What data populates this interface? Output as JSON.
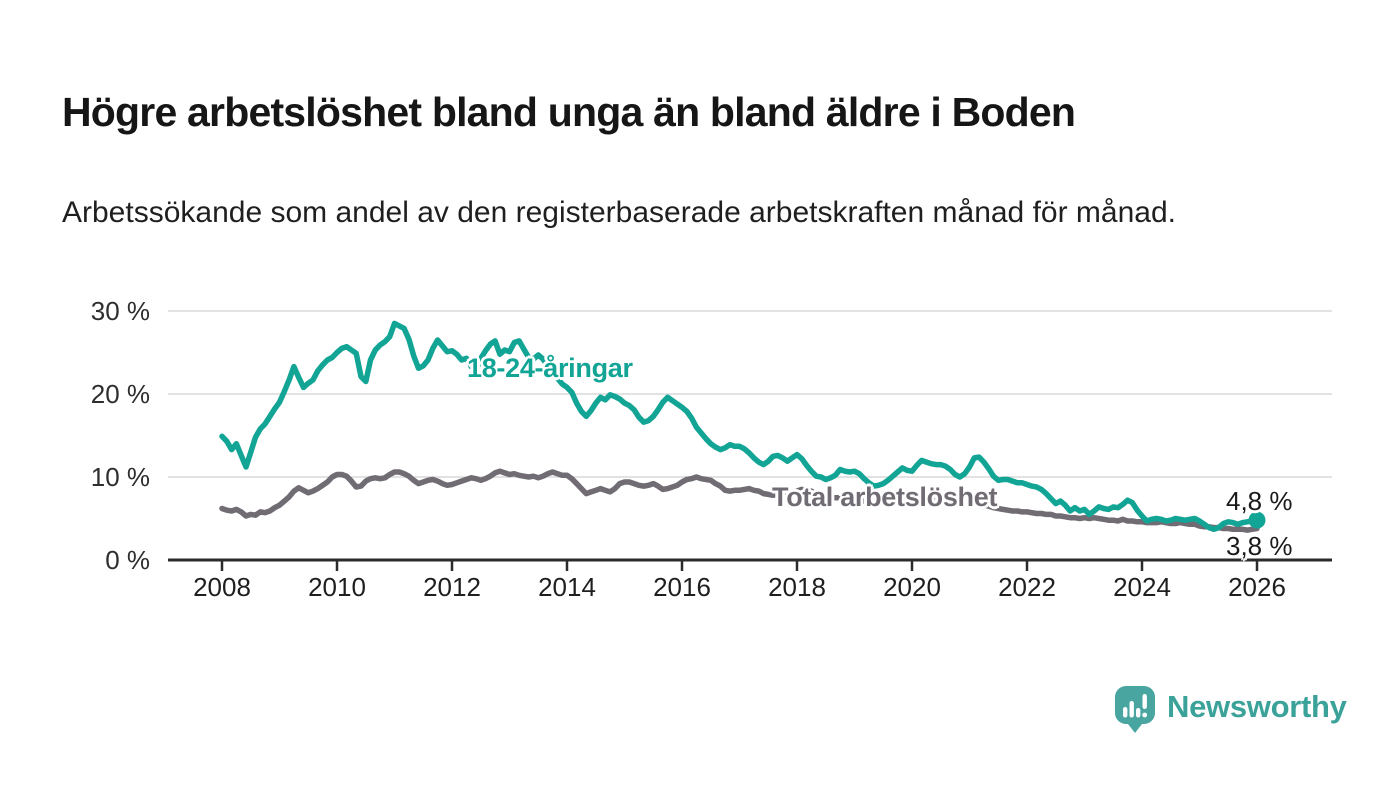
{
  "header": {
    "title": "Högre arbetslöshet bland unga än bland äldre i Boden",
    "subtitle": "Arbetssökande som andel av den registerbaserade arbetskraften månad för månad."
  },
  "colors": {
    "accent_teal": "#12a495",
    "line_gray": "#716c74",
    "grid": "#d8d8d8",
    "axis": "#2b2b2b",
    "tick_text": "#2e2e2e",
    "title_text": "#161616",
    "end_label_text": "#1a1a1a",
    "logo_bubble": "#48a59f",
    "logo_text": "#3ba29a"
  },
  "footer": {
    "brand": "Newsworthy",
    "logo_icon": "speech-bubble-bar-chart"
  },
  "chart_data": {
    "type": "line",
    "title": "Högre arbetslöshet bland unga än bland äldre i Boden",
    "ylabel": "",
    "xlabel": "",
    "grid": true,
    "legend_position": "inline-labels",
    "ylim": [
      0,
      31
    ],
    "x_axis": {
      "start_year": 2008,
      "points_per_year": 12,
      "tick_years": [
        2008,
        2010,
        2012,
        2014,
        2016,
        2018,
        2020,
        2022,
        2024,
        2026
      ]
    },
    "y_axis": {
      "ticks": [
        {
          "value": 0,
          "label": "0 %"
        },
        {
          "value": 10,
          "label": "10 %"
        },
        {
          "value": 20,
          "label": "20 %"
        },
        {
          "value": 30,
          "label": "30 %"
        }
      ]
    },
    "series": [
      {
        "name": "18-24-åringar",
        "color": "#12a495",
        "end_label": "4,8 %",
        "end_dot": true,
        "values": [
          14.9,
          14.3,
          13.3,
          14.0,
          12.6,
          11.2,
          13.0,
          14.8,
          15.8,
          16.4,
          17.3,
          18.2,
          19.0,
          20.3,
          21.7,
          23.3,
          22.0,
          20.8,
          21.3,
          21.7,
          22.8,
          23.5,
          24.1,
          24.4,
          25.0,
          25.5,
          25.7,
          25.3,
          24.9,
          22.1,
          21.5,
          24.1,
          25.3,
          25.9,
          26.3,
          26.9,
          28.5,
          28.2,
          27.9,
          26.6,
          24.6,
          23.1,
          23.4,
          24.1,
          25.5,
          26.5,
          25.8,
          25.1,
          25.2,
          24.8,
          24.1,
          24.3,
          23.3,
          22.9,
          24.3,
          25.2,
          26.0,
          26.4,
          24.8,
          25.3,
          25.1,
          26.2,
          26.4,
          25.4,
          24.4,
          24.2,
          24.7,
          24.2,
          23.4,
          22.6,
          21.9,
          21.2,
          20.8,
          20.2,
          18.9,
          17.9,
          17.3,
          18.0,
          18.9,
          19.6,
          19.3,
          19.9,
          19.7,
          19.4,
          18.9,
          18.6,
          18.1,
          17.2,
          16.6,
          16.8,
          17.3,
          18.1,
          19.0,
          19.6,
          19.2,
          18.8,
          18.4,
          17.9,
          17.1,
          16.0,
          15.3,
          14.6,
          14.0,
          13.6,
          13.3,
          13.5,
          13.9,
          13.7,
          13.7,
          13.4,
          12.9,
          12.3,
          11.8,
          11.5,
          11.9,
          12.5,
          12.6,
          12.3,
          11.9,
          12.3,
          12.7,
          12.2,
          11.4,
          10.7,
          10.1,
          10.0,
          9.7,
          9.9,
          10.2,
          10.9,
          10.7,
          10.6,
          10.7,
          10.4,
          9.8,
          9.3,
          8.9,
          9.0,
          9.2,
          9.6,
          10.1,
          10.6,
          11.1,
          10.8,
          10.7,
          11.4,
          12.0,
          11.8,
          11.6,
          11.5,
          11.5,
          11.3,
          10.9,
          10.3,
          10.0,
          10.4,
          11.2,
          12.3,
          12.4,
          11.8,
          11.0,
          10.1,
          9.6,
          9.7,
          9.7,
          9.5,
          9.3,
          9.3,
          9.1,
          8.9,
          8.8,
          8.5,
          8.0,
          7.4,
          6.8,
          7.1,
          6.6,
          5.9,
          6.3,
          5.9,
          6.1,
          5.5,
          5.9,
          6.4,
          6.2,
          6.1,
          6.4,
          6.3,
          6.7,
          7.2,
          6.9,
          6.0,
          5.3,
          4.7,
          4.9,
          5.0,
          4.9,
          4.7,
          4.8,
          5.0,
          4.9,
          4.8,
          4.9,
          5.0,
          4.7,
          4.3,
          3.9,
          3.7,
          3.9,
          4.4,
          4.6,
          4.5,
          4.3,
          4.5,
          4.6,
          4.7,
          4.8
        ]
      },
      {
        "name": "Total arbetslöshet",
        "color": "#716c74",
        "end_label": "3,8 %",
        "end_dot": false,
        "values": [
          6.2,
          6.0,
          5.9,
          6.1,
          5.8,
          5.3,
          5.5,
          5.4,
          5.8,
          5.7,
          5.9,
          6.3,
          6.6,
          7.1,
          7.6,
          8.3,
          8.7,
          8.4,
          8.1,
          8.3,
          8.6,
          9.0,
          9.4,
          10.0,
          10.3,
          10.3,
          10.1,
          9.5,
          8.8,
          8.9,
          9.5,
          9.8,
          9.9,
          9.8,
          9.9,
          10.3,
          10.6,
          10.6,
          10.4,
          10.1,
          9.6,
          9.2,
          9.4,
          9.6,
          9.7,
          9.5,
          9.2,
          9.0,
          9.1,
          9.3,
          9.5,
          9.7,
          9.9,
          9.8,
          9.6,
          9.8,
          10.1,
          10.5,
          10.7,
          10.5,
          10.3,
          10.4,
          10.2,
          10.1,
          10.0,
          10.1,
          9.9,
          10.1,
          10.4,
          10.6,
          10.4,
          10.2,
          10.2,
          9.8,
          9.2,
          8.6,
          8.0,
          8.2,
          8.4,
          8.6,
          8.4,
          8.2,
          8.6,
          9.2,
          9.4,
          9.4,
          9.2,
          9.0,
          8.9,
          9.0,
          9.2,
          8.9,
          8.5,
          8.6,
          8.8,
          9.0,
          9.4,
          9.7,
          9.8,
          10.0,
          9.8,
          9.7,
          9.6,
          9.2,
          8.9,
          8.4,
          8.3,
          8.4,
          8.4,
          8.5,
          8.6,
          8.4,
          8.3,
          8.0,
          7.9,
          7.8,
          7.9,
          7.9,
          8.0,
          8.1,
          8.3,
          8.5,
          8.4,
          8.3,
          7.9,
          7.8,
          7.7,
          7.6,
          7.5,
          7.5,
          7.4,
          7.4,
          7.3,
          7.2,
          7.1,
          7.0,
          7.0,
          6.9,
          6.9,
          7.0,
          7.1,
          7.1,
          7.2,
          7.2,
          7.2,
          7.3,
          7.5,
          7.6,
          7.6,
          7.5,
          7.5,
          7.4,
          7.4,
          7.3,
          7.2,
          7.1,
          7.0,
          6.9,
          6.8,
          6.6,
          6.5,
          6.3,
          6.2,
          6.1,
          6.0,
          5.9,
          5.9,
          5.8,
          5.8,
          5.7,
          5.6,
          5.6,
          5.5,
          5.5,
          5.3,
          5.3,
          5.2,
          5.1,
          5.1,
          5.0,
          5.1,
          5.0,
          5.1,
          5.0,
          4.9,
          4.8,
          4.8,
          4.7,
          4.9,
          4.7,
          4.7,
          4.6,
          4.6,
          4.5,
          4.5,
          4.5,
          4.6,
          4.5,
          4.4,
          4.4,
          4.5,
          4.4,
          4.3,
          4.3,
          4.1,
          4.0,
          4.0,
          3.9,
          3.9,
          3.8,
          3.8,
          3.7,
          3.7,
          3.7,
          3.6,
          3.7,
          3.8
        ]
      }
    ]
  }
}
